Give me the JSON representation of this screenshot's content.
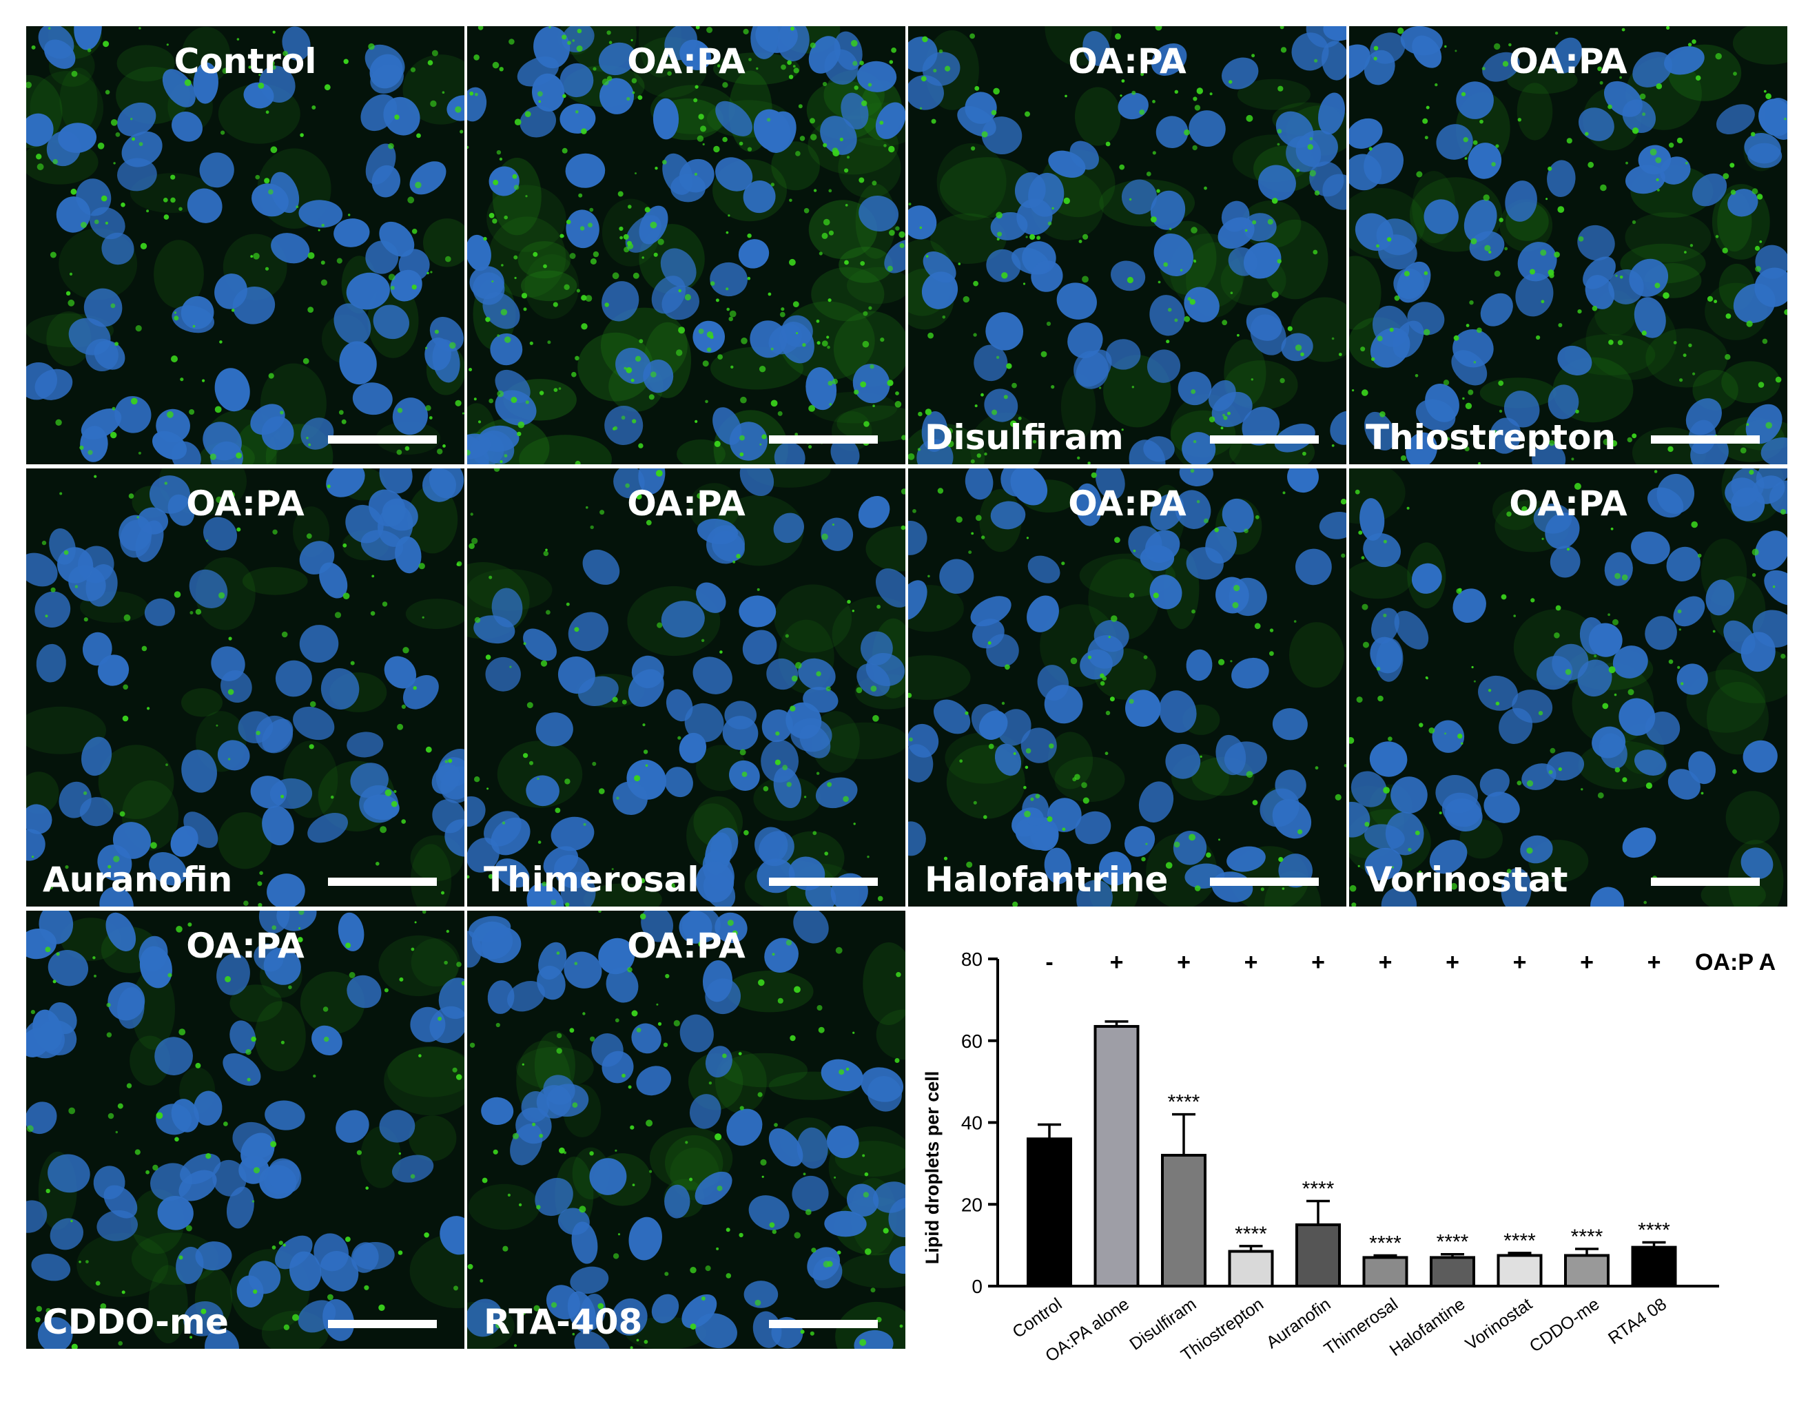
{
  "panels": [
    {
      "top_label": "Control",
      "bottom_label": ""
    },
    {
      "top_label": "OA:PA",
      "bottom_label": ""
    },
    {
      "top_label": "OA:PA",
      "bottom_label": "Disulfiram"
    },
    {
      "top_label": "OA:PA",
      "bottom_label": "Thiostrepton"
    },
    {
      "top_label": "OA:PA",
      "bottom_label": "Auranofin"
    },
    {
      "top_label": "OA:PA",
      "bottom_label": "Thimerosal"
    },
    {
      "top_label": "OA:PA",
      "bottom_label": "Halofantrine"
    },
    {
      "top_label": "OA:PA",
      "bottom_label": "Vorinostat"
    },
    {
      "top_label": "OA:PA",
      "bottom_label": "CDDO-me"
    },
    {
      "top_label": "OA:PA",
      "bottom_label": "RTA-408"
    }
  ],
  "colors": {
    "nuclei": "#2f6fc4",
    "lipid": "#39d21c",
    "background": "#04130a"
  },
  "chart_data": {
    "type": "bar",
    "title": "",
    "xlabel": "",
    "ylabel": "Lipid droplets per cell",
    "ylim": [
      0,
      80
    ],
    "yticks": [
      0,
      20,
      40,
      60,
      80
    ],
    "grid": false,
    "categories": [
      "Control",
      "OA:PA alone",
      "Disulfiram",
      "Thiostrepton",
      "Auranofin",
      "Thimerosal",
      "Halofantine",
      "Vorinostat",
      "CDDO-me",
      "RTA4 08"
    ],
    "values": [
      36,
      63.5,
      32,
      8.5,
      15,
      7,
      7,
      7.5,
      7.5,
      9.5
    ],
    "errors": [
      3.5,
      1.2,
      10,
      1.3,
      5.8,
      0.5,
      0.8,
      0.6,
      1.6,
      1.2
    ],
    "fills": [
      "#000000",
      "#9e9ea6",
      "#7a7a7a",
      "#d9d9d9",
      "#555555",
      "#8a8a8a",
      "#5c5c5c",
      "#e0e0e0",
      "#999999",
      "#000000"
    ],
    "significance": [
      "",
      "",
      "****",
      "****",
      "****",
      "****",
      "****",
      "****",
      "****",
      "****"
    ],
    "treatment_row": {
      "label": "OA:P A",
      "signs": [
        "-",
        "+",
        "+",
        "+",
        "+",
        "+",
        "+",
        "+",
        "+",
        "+"
      ]
    }
  }
}
